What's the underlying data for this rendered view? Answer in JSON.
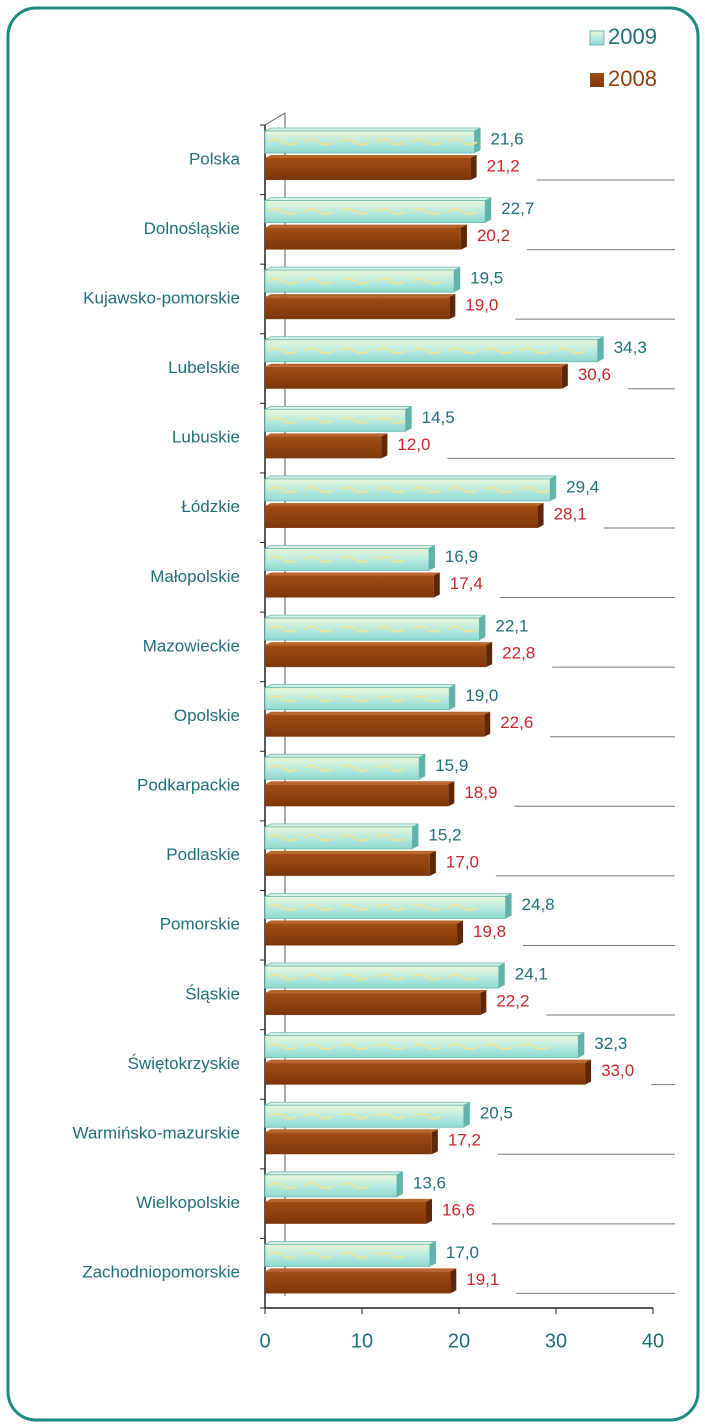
{
  "chart_data": {
    "type": "bar",
    "orientation": "horizontal",
    "categories": [
      "Polska",
      "Dolnośląskie",
      "Kujawsko-pomorskie",
      "Lubelskie",
      "Lubuskie",
      "Łódzkie",
      "Małopolskie",
      "Mazowieckie",
      "Opolskie",
      "Podkarpackie",
      "Podlaskie",
      "Pomorskie",
      "Śląskie",
      "Świętokrzyskie",
      "Warmińsko-mazurskie",
      "Wielkopolskie",
      "Zachodniopomorskie"
    ],
    "series": [
      {
        "name": "2009",
        "color": "#bdeede",
        "label_color": "#1f6f78",
        "values": [
          21.6,
          22.7,
          19.5,
          34.3,
          14.5,
          29.4,
          16.9,
          22.1,
          19.0,
          15.9,
          15.2,
          24.8,
          24.1,
          32.3,
          20.5,
          13.6,
          17.0
        ],
        "value_labels": [
          "21,6",
          "22,7",
          "19,5",
          "34,3",
          "14,5",
          "29,4",
          "16,9",
          "22,1",
          "19,0",
          "15,9",
          "15,2",
          "24,8",
          "24,1",
          "32,3",
          "20,5",
          "13,6",
          "17,0"
        ]
      },
      {
        "name": "2008",
        "color": "#8e3f0c",
        "label_color": "#c8262c",
        "values": [
          21.2,
          20.2,
          19.0,
          30.6,
          12.0,
          28.1,
          17.4,
          22.8,
          22.6,
          18.9,
          17.0,
          19.8,
          22.2,
          33.0,
          17.2,
          16.6,
          19.1
        ],
        "value_labels": [
          "21,2",
          "20,2",
          "19,0",
          "30,6",
          "12,0",
          "28,1",
          "17,4",
          "22,8",
          "22,6",
          "18,9",
          "17,0",
          "19,8",
          "22,2",
          "33,0",
          "17,2",
          "16,6",
          "19,1"
        ]
      }
    ],
    "xlim": [
      0,
      40
    ],
    "xticks": [
      0,
      10,
      20,
      30,
      40
    ],
    "legend": "top-right"
  }
}
